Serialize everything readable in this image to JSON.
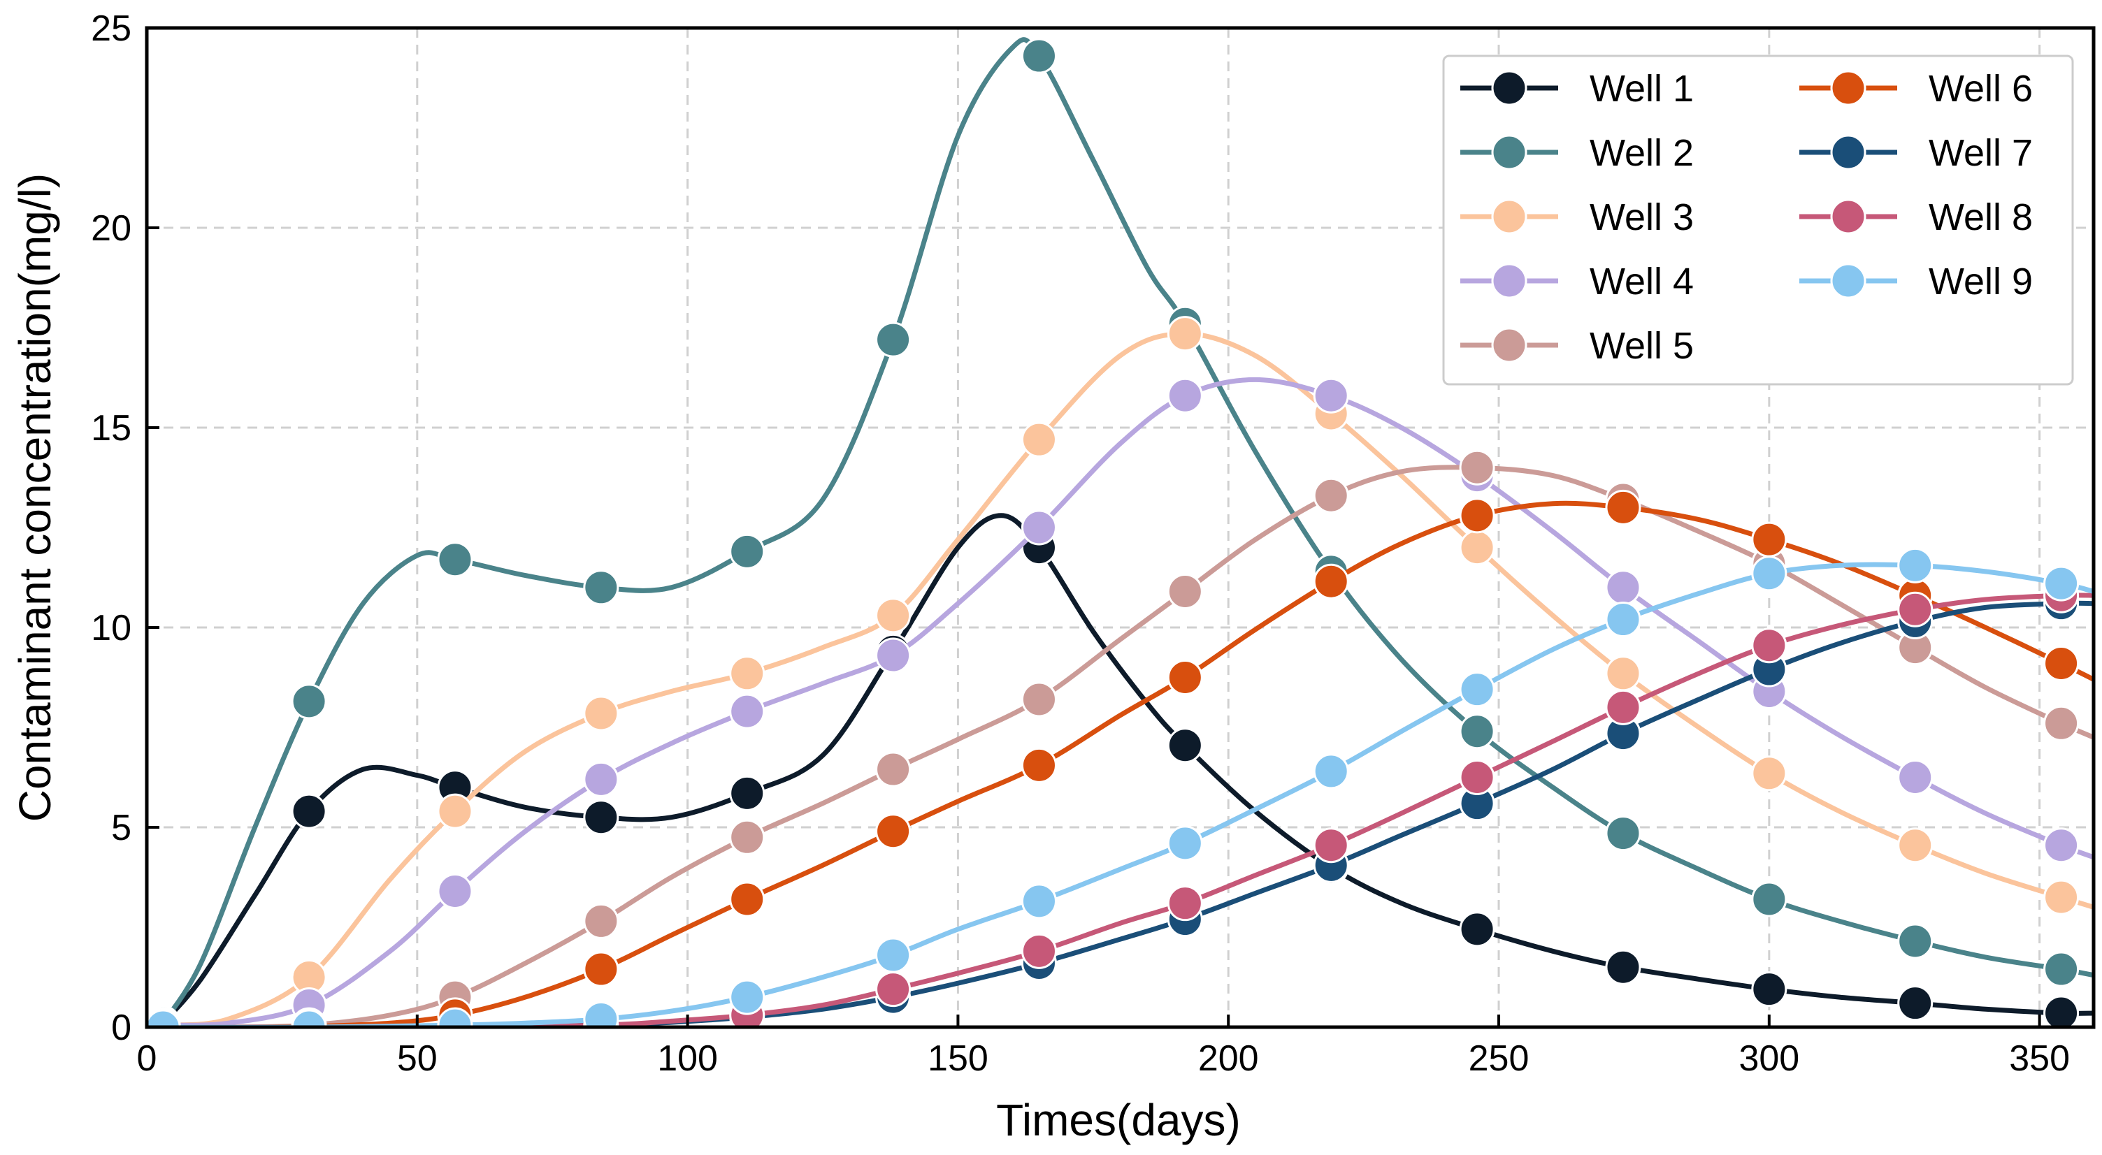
{
  "chart_data": {
    "type": "line",
    "title": "",
    "xlabel": "Times(days)",
    "ylabel": "Contaminant concentration(mg/l)",
    "xlim": [
      0,
      360
    ],
    "ylim": [
      0,
      25
    ],
    "xticks": [
      0,
      50,
      100,
      150,
      200,
      250,
      300,
      350
    ],
    "yticks": [
      0,
      5,
      10,
      15,
      20,
      25
    ],
    "grid": true,
    "legend_position": "top-right",
    "legend_columns": 2,
    "x": [
      3,
      30,
      57,
      84,
      111,
      138,
      165,
      192,
      219,
      246,
      273,
      300,
      327,
      354
    ],
    "series": [
      {
        "name": "Well 1",
        "color": "#0d1b2a",
        "values": [
          0.1,
          5.4,
          6.0,
          5.25,
          5.85,
          9.4,
          12.0,
          7.05,
          4.0,
          2.45,
          1.5,
          0.95,
          0.6,
          0.35
        ],
        "curve_x": [
          3,
          10,
          20,
          30,
          40,
          50,
          57,
          70,
          84,
          97,
          111,
          125,
          138,
          150,
          158,
          165,
          175,
          185,
          192,
          205,
          219,
          232,
          246,
          260,
          273,
          287,
          300,
          313,
          327,
          340,
          354,
          360
        ],
        "curve_y": [
          0.1,
          1.2,
          3.3,
          5.4,
          6.45,
          6.3,
          6.0,
          5.5,
          5.25,
          5.25,
          5.85,
          6.8,
          9.4,
          12.0,
          12.8,
          12.0,
          9.9,
          8.1,
          7.05,
          5.4,
          4.0,
          3.1,
          2.45,
          1.9,
          1.5,
          1.2,
          0.95,
          0.75,
          0.6,
          0.45,
          0.35,
          0.35
        ]
      },
      {
        "name": "Well 2",
        "color": "#4a838a",
        "values": [
          0.1,
          8.15,
          11.7,
          11.0,
          11.9,
          17.2,
          24.3,
          17.6,
          11.4,
          7.4,
          4.85,
          3.2,
          2.15,
          1.45
        ],
        "curve_x": [
          3,
          10,
          20,
          30,
          40,
          50,
          57,
          70,
          84,
          97,
          111,
          125,
          138,
          150,
          160,
          165,
          175,
          185,
          192,
          205,
          219,
          232,
          246,
          260,
          273,
          287,
          300,
          313,
          327,
          340,
          354,
          360
        ],
        "curve_y": [
          0.1,
          1.6,
          5.0,
          8.15,
          10.6,
          11.8,
          11.7,
          11.3,
          11.0,
          11.0,
          11.9,
          13.2,
          17.2,
          22.3,
          24.5,
          24.3,
          21.7,
          19.0,
          17.6,
          14.4,
          11.4,
          9.2,
          7.4,
          6.0,
          4.85,
          3.95,
          3.2,
          2.65,
          2.15,
          1.75,
          1.45,
          1.3
        ]
      },
      {
        "name": "Well 3",
        "color": "#fbc49c",
        "values": [
          0.05,
          1.25,
          5.4,
          7.85,
          8.85,
          10.3,
          14.7,
          17.35,
          15.35,
          12.0,
          8.85,
          6.35,
          4.55,
          3.25
        ],
        "curve_x": [
          3,
          15,
          30,
          45,
          57,
          70,
          84,
          97,
          111,
          125,
          138,
          150,
          165,
          180,
          192,
          205,
          219,
          232,
          246,
          260,
          273,
          287,
          300,
          313,
          327,
          340,
          354,
          360
        ],
        "curve_y": [
          0.05,
          0.2,
          1.25,
          3.7,
          5.4,
          6.9,
          7.85,
          8.4,
          8.85,
          9.5,
          10.3,
          12.2,
          14.7,
          16.8,
          17.35,
          16.8,
          15.35,
          13.8,
          12.0,
          10.3,
          8.85,
          7.5,
          6.35,
          5.4,
          4.55,
          3.85,
          3.25,
          3.0
        ]
      },
      {
        "name": "Well 4",
        "color": "#b7a6df",
        "values": [
          0.05,
          0.55,
          3.4,
          6.2,
          7.9,
          9.3,
          12.5,
          15.8,
          15.8,
          13.8,
          11.0,
          8.4,
          6.25,
          4.55
        ],
        "curve_x": [
          3,
          15,
          30,
          45,
          57,
          70,
          84,
          97,
          111,
          125,
          138,
          150,
          165,
          180,
          192,
          205,
          219,
          232,
          246,
          260,
          273,
          287,
          300,
          313,
          327,
          340,
          354,
          360
        ],
        "curve_y": [
          0.05,
          0.1,
          0.55,
          1.9,
          3.4,
          4.9,
          6.2,
          7.1,
          7.9,
          8.6,
          9.3,
          10.6,
          12.5,
          14.6,
          15.8,
          16.2,
          15.8,
          15.0,
          13.8,
          12.4,
          11.0,
          9.65,
          8.4,
          7.3,
          6.25,
          5.35,
          4.55,
          4.25
        ]
      },
      {
        "name": "Well 5",
        "color": "#cb9b97",
        "values": [
          0.0,
          0.05,
          0.75,
          2.65,
          4.75,
          6.45,
          8.2,
          10.9,
          13.3,
          14.0,
          13.2,
          11.6,
          9.5,
          7.6
        ],
        "curve_x": [
          3,
          15,
          30,
          45,
          57,
          70,
          84,
          97,
          111,
          125,
          138,
          150,
          165,
          180,
          192,
          205,
          219,
          232,
          246,
          260,
          273,
          287,
          300,
          313,
          327,
          340,
          354,
          360
        ],
        "curve_y": [
          0.0,
          0.0,
          0.05,
          0.3,
          0.75,
          1.6,
          2.65,
          3.75,
          4.75,
          5.6,
          6.45,
          7.2,
          8.2,
          9.7,
          10.9,
          12.2,
          13.3,
          13.9,
          14.0,
          13.8,
          13.2,
          12.4,
          11.6,
          10.6,
          9.5,
          8.5,
          7.6,
          7.25
        ]
      },
      {
        "name": "Well 6",
        "color": "#d84f0e",
        "values": [
          0.0,
          0.02,
          0.3,
          1.45,
          3.2,
          4.9,
          6.55,
          8.75,
          11.15,
          12.8,
          13.0,
          12.2,
          10.8,
          9.1
        ],
        "curve_x": [
          3,
          15,
          30,
          45,
          57,
          70,
          84,
          97,
          111,
          125,
          138,
          150,
          165,
          180,
          192,
          205,
          219,
          232,
          246,
          260,
          273,
          287,
          300,
          313,
          327,
          340,
          354,
          360
        ],
        "curve_y": [
          0.0,
          0.0,
          0.02,
          0.1,
          0.3,
          0.75,
          1.45,
          2.3,
          3.2,
          4.05,
          4.9,
          5.65,
          6.55,
          7.8,
          8.75,
          9.95,
          11.15,
          12.1,
          12.8,
          13.1,
          13.0,
          12.7,
          12.2,
          11.6,
          10.8,
          10.0,
          9.1,
          8.7
        ]
      },
      {
        "name": "Well 7",
        "color": "#1a4e78",
        "values": [
          0.0,
          0.0,
          0.0,
          0.05,
          0.25,
          0.75,
          1.6,
          2.7,
          4.05,
          5.6,
          7.35,
          8.95,
          10.15,
          10.6
        ],
        "curve_x": [
          3,
          30,
          57,
          84,
          97,
          111,
          125,
          138,
          150,
          165,
          180,
          192,
          205,
          219,
          232,
          246,
          260,
          273,
          287,
          300,
          313,
          327,
          340,
          354,
          360
        ],
        "curve_y": [
          0.0,
          0.0,
          0.0,
          0.05,
          0.12,
          0.25,
          0.45,
          0.75,
          1.1,
          1.6,
          2.2,
          2.7,
          3.35,
          4.05,
          4.8,
          5.6,
          6.45,
          7.35,
          8.2,
          8.95,
          9.6,
          10.15,
          10.5,
          10.6,
          10.6
        ]
      },
      {
        "name": "Well 8",
        "color": "#c65878",
        "values": [
          0.0,
          0.0,
          0.0,
          0.05,
          0.3,
          0.95,
          1.9,
          3.1,
          4.55,
          6.25,
          8.0,
          9.55,
          10.45,
          10.8
        ],
        "curve_x": [
          3,
          30,
          57,
          84,
          97,
          111,
          125,
          138,
          150,
          165,
          180,
          192,
          205,
          219,
          232,
          246,
          260,
          273,
          287,
          300,
          313,
          327,
          340,
          354,
          360
        ],
        "curve_y": [
          0.0,
          0.0,
          0.0,
          0.05,
          0.15,
          0.3,
          0.55,
          0.95,
          1.35,
          1.9,
          2.6,
          3.1,
          3.8,
          4.55,
          5.35,
          6.25,
          7.15,
          8.0,
          8.85,
          9.55,
          10.05,
          10.45,
          10.7,
          10.8,
          10.8
        ]
      },
      {
        "name": "Well 9",
        "color": "#86c6f0",
        "values": [
          0.0,
          0.0,
          0.05,
          0.2,
          0.75,
          1.8,
          3.15,
          4.6,
          6.4,
          8.45,
          10.2,
          11.35,
          11.55,
          11.1
        ],
        "curve_x": [
          3,
          30,
          57,
          70,
          84,
          97,
          111,
          125,
          138,
          150,
          165,
          180,
          192,
          205,
          219,
          232,
          246,
          260,
          273,
          287,
          300,
          313,
          327,
          340,
          354,
          360
        ],
        "curve_y": [
          0.0,
          0.0,
          0.05,
          0.1,
          0.2,
          0.4,
          0.75,
          1.25,
          1.8,
          2.45,
          3.15,
          3.95,
          4.6,
          5.45,
          6.4,
          7.4,
          8.45,
          9.45,
          10.2,
          10.85,
          11.35,
          11.55,
          11.55,
          11.4,
          11.1,
          10.9
        ]
      }
    ]
  }
}
